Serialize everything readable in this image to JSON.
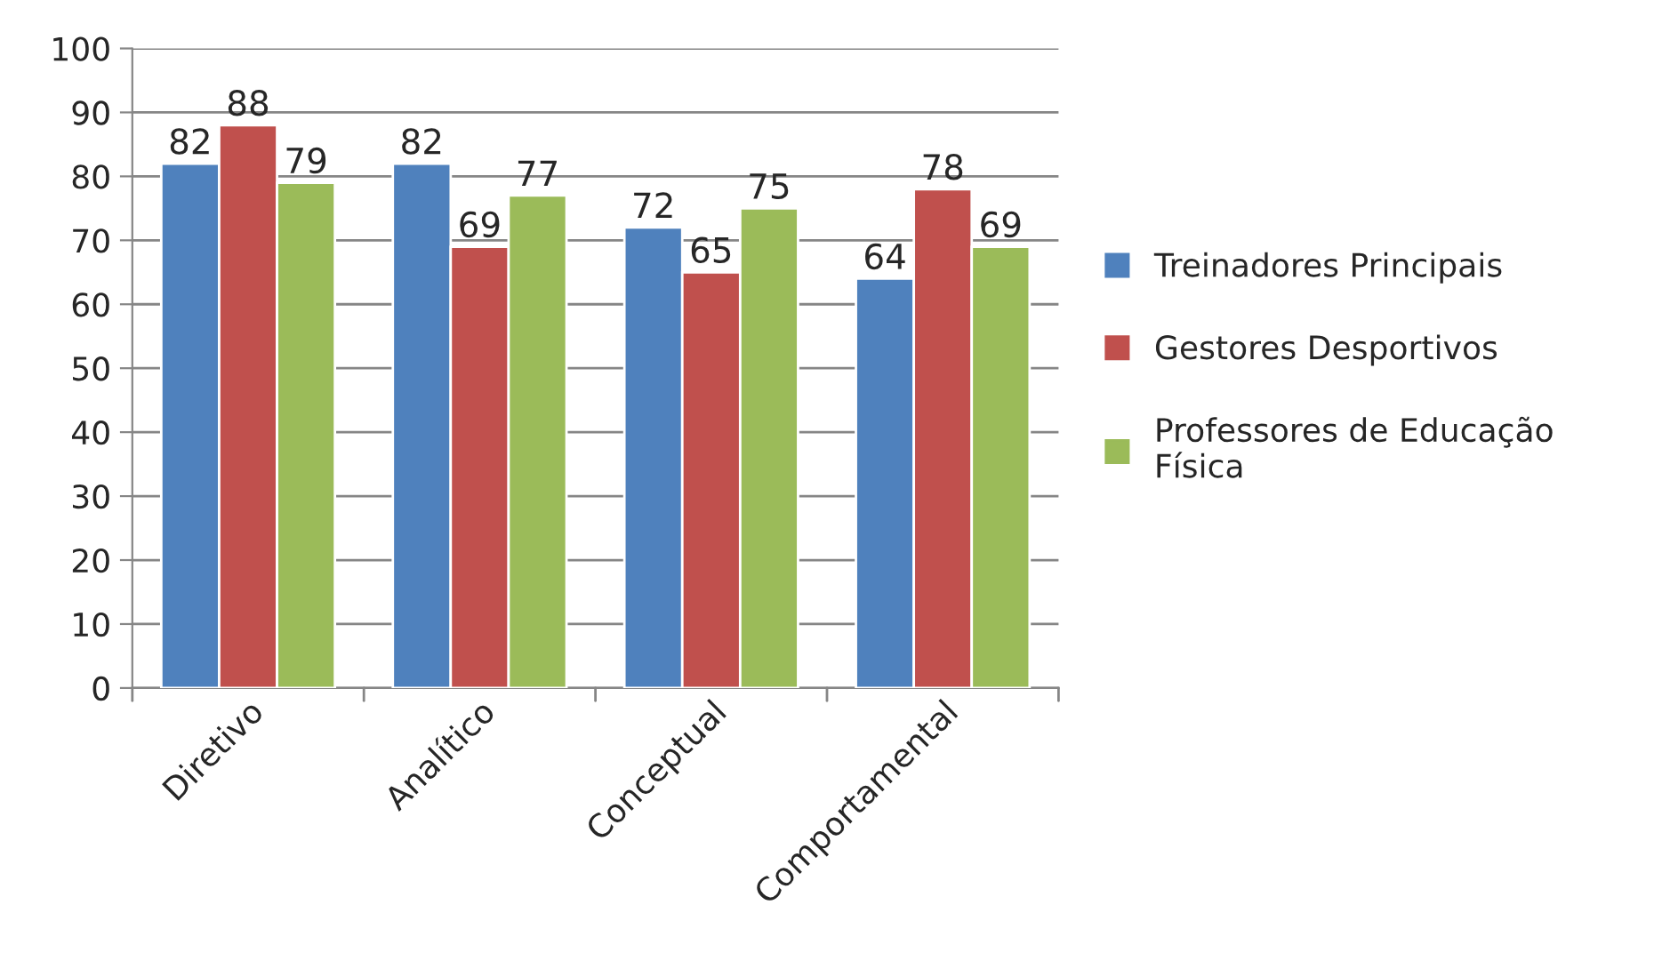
{
  "chart_data": {
    "type": "bar",
    "categories": [
      "Diretivo",
      "Analítico",
      "Conceptual",
      "Comportamental"
    ],
    "series": [
      {
        "name": "Treinadores Principais",
        "color": "#4f81bd",
        "values": [
          82,
          82,
          72,
          64
        ]
      },
      {
        "name": "Gestores Desportivos",
        "color": "#c0504d",
        "values": [
          88,
          69,
          65,
          78
        ]
      },
      {
        "name": "Professores de Educação Física",
        "color": "#9bbb59",
        "values": [
          79,
          77,
          75,
          69
        ]
      }
    ],
    "ylim": [
      0,
      100
    ],
    "yticks": [
      0,
      10,
      20,
      30,
      40,
      50,
      60,
      70,
      80,
      90,
      100
    ],
    "grid": "y",
    "legend": "right",
    "data_labels": true
  }
}
